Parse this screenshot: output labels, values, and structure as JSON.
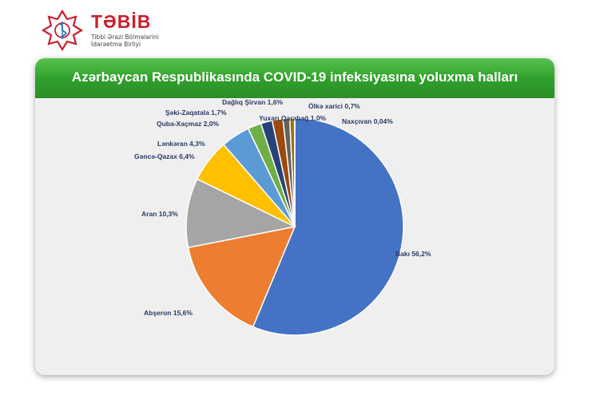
{
  "logo": {
    "name": "TƏBİB",
    "subtitle_line1": "Tibbi Ərazi Bölmələrini",
    "subtitle_line2": "İdarəetmə Birliyi",
    "color": "#c8202f"
  },
  "chart_data": {
    "type": "pie",
    "title": "Azərbaycan Respublikasında COVID-19 infeksiyasına yoluxma halları",
    "slices": [
      {
        "label": "Bakı",
        "value_text": "56,2%",
        "value": 56.2,
        "color": "#4472c4"
      },
      {
        "label": "Abşeron",
        "value_text": "15,6%",
        "value": 15.6,
        "color": "#ed7d31"
      },
      {
        "label": "Aran",
        "value_text": "10,3%",
        "value": 10.3,
        "color": "#a5a5a5"
      },
      {
        "label": "Gəncə-Qazax",
        "value_text": "6,4%",
        "value": 6.4,
        "color": "#ffc000"
      },
      {
        "label": "Lənkəran",
        "value_text": "4,3%",
        "value": 4.3,
        "color": "#5b9bd5"
      },
      {
        "label": "Quba-Xaçmaz",
        "value_text": "2,0%",
        "value": 2.0,
        "color": "#70ad47"
      },
      {
        "label": "Şəki-Zaqatala",
        "value_text": "1,7%",
        "value": 1.7,
        "color": "#264478"
      },
      {
        "label": "Dağlıq Şirvan",
        "value_text": "1,6%",
        "value": 1.6,
        "color": "#9e480e"
      },
      {
        "label": "Yuxarı Qarabağ",
        "value_text": "1,0%",
        "value": 1.0,
        "color": "#636363"
      },
      {
        "label": "Ölkə xarici",
        "value_text": "0,7%",
        "value": 0.7,
        "color": "#997300"
      },
      {
        "label": "Naxçıvan",
        "value_text": "0,04%",
        "value": 0.04,
        "color": "#255e91"
      }
    ]
  }
}
